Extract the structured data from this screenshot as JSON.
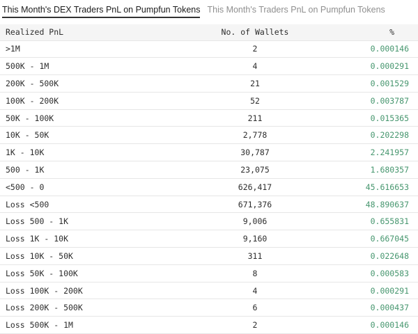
{
  "widget": {
    "tabs": [
      {
        "label": "This Month's DEX Traders PnL on Pumpfun Tokens",
        "active": true
      },
      {
        "label": "This Month's Traders PnL on Pumpfun Tokens",
        "active": false
      }
    ]
  },
  "table": {
    "columns": [
      "Realized PnL",
      "No. of Wallets",
      "%"
    ],
    "rows": [
      {
        "pnl": ">1M",
        "wallets": "2",
        "percent": "0.000146"
      },
      {
        "pnl": "500K - 1M",
        "wallets": "4",
        "percent": "0.000291"
      },
      {
        "pnl": "200K - 500K",
        "wallets": "21",
        "percent": "0.001529"
      },
      {
        "pnl": "100K - 200K",
        "wallets": "52",
        "percent": "0.003787"
      },
      {
        "pnl": "50K - 100K",
        "wallets": "211",
        "percent": "0.015365"
      },
      {
        "pnl": "10K - 50K",
        "wallets": "2,778",
        "percent": "0.202298"
      },
      {
        "pnl": "1K - 10K",
        "wallets": "30,787",
        "percent": "2.241957"
      },
      {
        "pnl": "500 - 1K",
        "wallets": "23,075",
        "percent": "1.680357"
      },
      {
        "pnl": "<500 - 0",
        "wallets": "626,417",
        "percent": "45.616653"
      },
      {
        "pnl": "Loss <500",
        "wallets": "671,376",
        "percent": "48.890637"
      },
      {
        "pnl": "Loss 500 - 1K",
        "wallets": "9,006",
        "percent": "0.655831"
      },
      {
        "pnl": "Loss 1K - 10K",
        "wallets": "9,160",
        "percent": "0.667045"
      },
      {
        "pnl": "Loss 10K - 50K",
        "wallets": "311",
        "percent": "0.022648"
      },
      {
        "pnl": "Loss 50K - 100K",
        "wallets": "8",
        "percent": "0.000583"
      },
      {
        "pnl": "Loss 100K - 200K",
        "wallets": "4",
        "percent": "0.000291"
      },
      {
        "pnl": "Loss 200K - 500K",
        "wallets": "6",
        "percent": "0.000437"
      },
      {
        "pnl": "Loss 500K - 1M",
        "wallets": "2",
        "percent": "0.000146"
      }
    ]
  },
  "colors": {
    "percent_text": "#46966e",
    "header_bg": "#f5f5f5",
    "row_border": "#e6e6e6",
    "active_tab_text": "#1c1c1c",
    "active_tab_underline": "#333333",
    "inactive_tab_text": "#8f8f8f"
  }
}
